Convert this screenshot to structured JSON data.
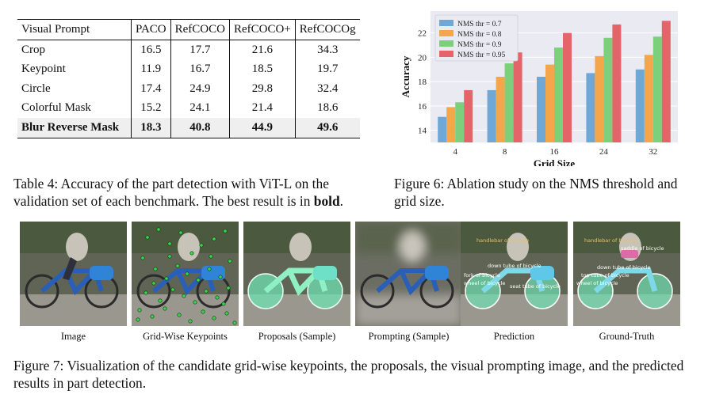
{
  "table": {
    "headers": [
      "Visual Prompt",
      "PACO",
      "RefCOCO",
      "RefCOCO+",
      "RefCOCOg"
    ],
    "rows": [
      {
        "name": "Crop",
        "values": [
          "16.5",
          "17.7",
          "21.6",
          "34.3"
        ]
      },
      {
        "name": "Keypoint",
        "values": [
          "11.9",
          "16.7",
          "18.5",
          "19.7"
        ]
      },
      {
        "name": "Circle",
        "values": [
          "17.4",
          "24.9",
          "29.8",
          "32.4"
        ]
      },
      {
        "name": "Colorful Mask",
        "values": [
          "15.2",
          "24.1",
          "21.4",
          "18.6"
        ]
      },
      {
        "name": "Blur Reverse Mask",
        "values": [
          "18.3",
          "40.8",
          "44.9",
          "49.6"
        ]
      }
    ],
    "caption_label": "Table 4:",
    "caption_text": "Accuracy of the part detection with ViT-L on the validation set of each benchmark. The best result is in",
    "caption_bold": "bold",
    "caption_end": "."
  },
  "figure6": {
    "caption_label": "Figure 6:",
    "caption_text": "Ablation study on the NMS threshold and grid size."
  },
  "chart_data": {
    "type": "bar",
    "categories": [
      "4",
      "8",
      "16",
      "24",
      "32"
    ],
    "xlabel": "Grid Size",
    "ylabel": "Accuracy",
    "ylim": [
      13,
      23.8
    ],
    "yticks": [
      14,
      16,
      18,
      20,
      22
    ],
    "grid": true,
    "legend": "top-left",
    "series": [
      {
        "name": "NMS thr = 0.7",
        "color": "#6fa8d6",
        "values": [
          15.1,
          17.3,
          18.4,
          18.7,
          19.0
        ]
      },
      {
        "name": "NMS thr = 0.8",
        "color": "#f5a54a",
        "values": [
          15.9,
          18.4,
          19.4,
          20.1,
          20.2
        ]
      },
      {
        "name": "NMS thr = 0.9",
        "color": "#7cd07c",
        "values": [
          16.3,
          19.5,
          20.8,
          21.6,
          21.7
        ]
      },
      {
        "name": "NMS thr = 0.95",
        "color": "#e4646a",
        "values": [
          17.3,
          20.4,
          22.0,
          22.7,
          23.0
        ]
      }
    ]
  },
  "figure7": {
    "panels": [
      "Image",
      "Grid-Wise Keypoints",
      "Proposals (Sample)",
      "Prompting (Sample)",
      "Prediction",
      "Ground-Truth"
    ],
    "prediction_tags": [
      "handlebar of bicycle",
      "down tube of bicycle",
      "fork of bicycle",
      "wheel of bicycle",
      "seat tube of bicycle"
    ],
    "groundtruth_tags": [
      "handlebar of bicycle",
      "saddle of bicycle",
      "down tube of bicycle",
      "top tube of bicycle",
      "wheel of bicycle"
    ],
    "caption_label": "Figure 7:",
    "caption_text": "Visualization of the candidate grid-wise keypoints, the proposals, the visual prompting image, and the predicted results in part detection."
  }
}
